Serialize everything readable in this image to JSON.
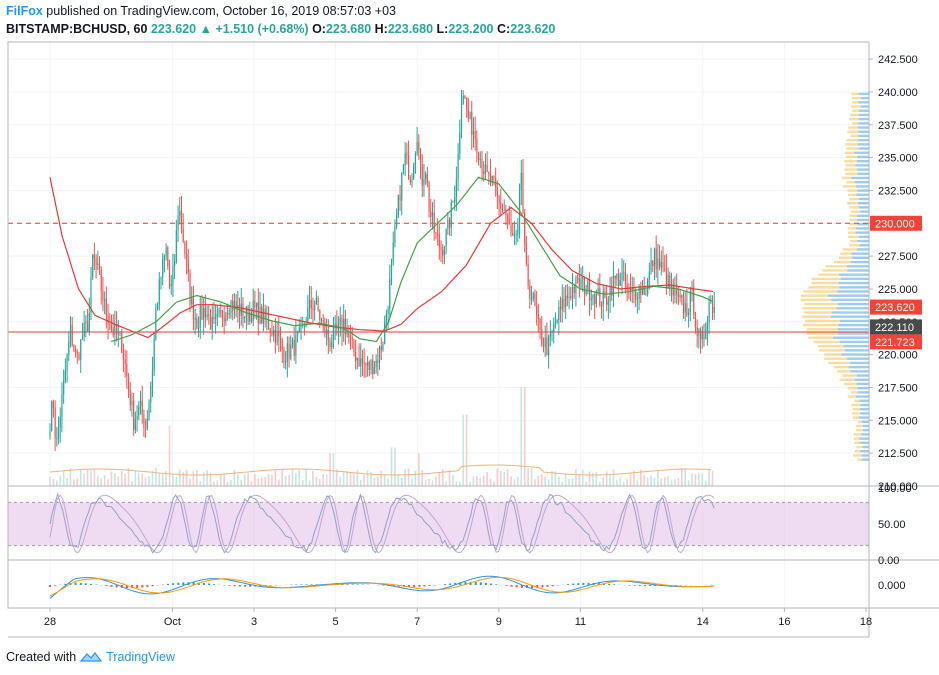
{
  "header": {
    "author": "FilFox",
    "published_text": "published on TradingView.com, October 16, 2019 08:57:03 +03",
    "symbol": "BITSTAMP:BCHUSD, 60",
    "last": "223.620",
    "change": "+1.510 (+0.68%)",
    "o_label": "O:",
    "o": "223.680",
    "h_label": "H:",
    "h": "223.680",
    "l_label": "L:",
    "l": "223.200",
    "c_label": "C:",
    "c": "223.620"
  },
  "footer": {
    "prefix": "Created with",
    "brand": "TradingView"
  },
  "colors": {
    "up": "#26a69a",
    "down": "#ef5350",
    "ma_fast": "#43a047",
    "ma_slow": "#e53935",
    "stoch_band": "#e1bee7",
    "hline": "#e53935",
    "vp_up": "#4fa3e0",
    "vp_down": "#f6c14b"
  },
  "chart_data": {
    "type": "candlestick",
    "y_ticks": [
      "242.500",
      "240.000",
      "237.500",
      "235.000",
      "232.500",
      "230.000",
      "227.500",
      "225.000",
      "222.500",
      "220.000",
      "217.500",
      "215.000",
      "212.500",
      "210.000"
    ],
    "ylim": [
      210.0,
      243.8
    ],
    "x_ticks": [
      {
        "label": "28",
        "day": 0
      },
      {
        "label": "Oct",
        "day": 3
      },
      {
        "label": "3",
        "day": 5
      },
      {
        "label": "5",
        "day": 7
      },
      {
        "label": "7",
        "day": 9
      },
      {
        "label": "9",
        "day": 11
      },
      {
        "label": "11",
        "day": 13
      },
      {
        "label": "14",
        "day": 16
      },
      {
        "label": "16",
        "day": 18
      },
      {
        "label": "18",
        "day": 20
      }
    ],
    "price_labels": [
      {
        "text": "230.000",
        "value": 230.0,
        "bg": "#f44336",
        "fg": "#ffffff"
      },
      {
        "text": "223.620",
        "value": 223.62,
        "bg": "#f44336",
        "fg": "#ffffff"
      },
      {
        "text": "222.110",
        "value": 222.11,
        "bg": "#4a4a4a",
        "fg": "#ffffff"
      },
      {
        "text": "221.723",
        "value": 221.723,
        "bg": "#f44336",
        "fg": "#ffffff"
      }
    ],
    "hlines": [
      {
        "value": 230.0,
        "style": "dashed"
      },
      {
        "value": 221.723,
        "style": "solid"
      }
    ],
    "anchors": [
      [
        0.0,
        215.0
      ],
      [
        0.08,
        216.5
      ],
      [
        0.15,
        212.8
      ],
      [
        0.25,
        215.5
      ],
      [
        0.35,
        218.0
      ],
      [
        0.5,
        221.8
      ],
      [
        0.65,
        219.5
      ],
      [
        0.8,
        221.5
      ],
      [
        0.95,
        222.5
      ],
      [
        1.05,
        227.5
      ],
      [
        1.2,
        226.0
      ],
      [
        1.35,
        223.5
      ],
      [
        1.55,
        221.8
      ],
      [
        1.75,
        221.0
      ],
      [
        1.9,
        218.0
      ],
      [
        2.05,
        215.0
      ],
      [
        2.2,
        216.0
      ],
      [
        2.35,
        214.5
      ],
      [
        2.5,
        218.5
      ],
      [
        2.6,
        223.5
      ],
      [
        2.75,
        226.5
      ],
      [
        2.85,
        228.0
      ],
      [
        2.95,
        224.5
      ],
      [
        3.05,
        227.0
      ],
      [
        3.15,
        231.5
      ],
      [
        3.3,
        228.0
      ],
      [
        3.45,
        224.0
      ],
      [
        3.6,
        222.5
      ],
      [
        3.8,
        223.5
      ],
      [
        4.0,
        222.0
      ],
      [
        4.2,
        223.0
      ],
      [
        4.4,
        224.0
      ],
      [
        4.6,
        223.5
      ],
      [
        4.8,
        223.0
      ],
      [
        5.0,
        223.5
      ],
      [
        5.3,
        222.5
      ],
      [
        5.55,
        221.5
      ],
      [
        5.75,
        220.0
      ],
      [
        5.95,
        220.5
      ],
      [
        6.15,
        221.5
      ],
      [
        6.35,
        223.5
      ],
      [
        6.5,
        224.0
      ],
      [
        6.65,
        222.5
      ],
      [
        6.85,
        221.0
      ],
      [
        7.05,
        221.8
      ],
      [
        7.2,
        222.5
      ],
      [
        7.4,
        220.5
      ],
      [
        7.6,
        219.5
      ],
      [
        7.8,
        219.0
      ],
      [
        8.0,
        219.5
      ],
      [
        8.15,
        221.0
      ],
      [
        8.3,
        224.5
      ],
      [
        8.4,
        227.5
      ],
      [
        8.5,
        230.5
      ],
      [
        8.6,
        233.0
      ],
      [
        8.7,
        235.0
      ],
      [
        8.85,
        233.5
      ],
      [
        9.0,
        237.0
      ],
      [
        9.1,
        233.0
      ],
      [
        9.2,
        234.5
      ],
      [
        9.3,
        231.0
      ],
      [
        9.45,
        229.0
      ],
      [
        9.6,
        228.0
      ],
      [
        9.75,
        229.5
      ],
      [
        9.9,
        232.0
      ],
      [
        10.0,
        235.0
      ],
      [
        10.1,
        240.5
      ],
      [
        10.25,
        238.0
      ],
      [
        10.4,
        237.0
      ],
      [
        10.55,
        235.0
      ],
      [
        10.7,
        233.5
      ],
      [
        10.85,
        233.0
      ],
      [
        11.0,
        231.5
      ],
      [
        11.15,
        231.0
      ],
      [
        11.3,
        229.0
      ],
      [
        11.45,
        228.5
      ],
      [
        11.55,
        234.0
      ],
      [
        11.65,
        226.5
      ],
      [
        11.75,
        225.0
      ],
      [
        11.85,
        224.0
      ],
      [
        12.0,
        221.5
      ],
      [
        12.2,
        220.5
      ],
      [
        12.4,
        222.5
      ],
      [
        12.6,
        224.0
      ],
      [
        12.8,
        225.0
      ],
      [
        13.0,
        225.5
      ],
      [
        13.2,
        225.0
      ],
      [
        13.4,
        224.5
      ],
      [
        13.6,
        224.0
      ],
      [
        13.8,
        225.5
      ],
      [
        14.0,
        226.0
      ],
      [
        14.2,
        224.5
      ],
      [
        14.4,
        225.0
      ],
      [
        14.6,
        225.0
      ],
      [
        14.8,
        227.5
      ],
      [
        15.0,
        226.5
      ],
      [
        15.2,
        225.0
      ],
      [
        15.4,
        224.0
      ],
      [
        15.6,
        223.5
      ],
      [
        15.75,
        224.5
      ],
      [
        15.85,
        222.0
      ],
      [
        15.95,
        220.5
      ],
      [
        16.05,
        221.8
      ],
      [
        16.15,
        224.0
      ],
      [
        16.28,
        223.62
      ]
    ],
    "ma_fast_anchors": [
      [
        1.5,
        221.0
      ],
      [
        2.0,
        221.5
      ],
      [
        2.6,
        222.5
      ],
      [
        3.1,
        224.0
      ],
      [
        3.6,
        224.5
      ],
      [
        4.2,
        224.0
      ],
      [
        4.8,
        223.2
      ],
      [
        5.4,
        222.6
      ],
      [
        6.0,
        222.2
      ],
      [
        6.6,
        222.4
      ],
      [
        7.2,
        222.0
      ],
      [
        7.6,
        221.2
      ],
      [
        8.0,
        221.0
      ],
      [
        8.3,
        222.5
      ],
      [
        8.6,
        225.5
      ],
      [
        9.0,
        228.5
      ],
      [
        9.5,
        230.0
      ],
      [
        10.0,
        231.5
      ],
      [
        10.5,
        233.5
      ],
      [
        11.0,
        233.0
      ],
      [
        11.5,
        231.0
      ],
      [
        12.0,
        228.5
      ],
      [
        12.5,
        226.0
      ],
      [
        13.0,
        225.0
      ],
      [
        13.6,
        224.6
      ],
      [
        14.2,
        224.8
      ],
      [
        14.8,
        225.2
      ],
      [
        15.4,
        225.0
      ],
      [
        16.0,
        224.4
      ],
      [
        16.28,
        224.0
      ]
    ],
    "ma_slow_anchors": [
      [
        0.0,
        233.5
      ],
      [
        0.3,
        229.0
      ],
      [
        0.7,
        225.0
      ],
      [
        1.1,
        223.0
      ],
      [
        1.6,
        222.3
      ],
      [
        2.0,
        221.8
      ],
      [
        2.4,
        221.3
      ],
      [
        2.8,
        222.2
      ],
      [
        3.2,
        223.2
      ],
      [
        3.6,
        223.8
      ],
      [
        4.0,
        223.8
      ],
      [
        4.6,
        223.6
      ],
      [
        5.2,
        223.2
      ],
      [
        5.8,
        222.8
      ],
      [
        6.4,
        222.4
      ],
      [
        7.0,
        222.1
      ],
      [
        7.6,
        221.9
      ],
      [
        8.2,
        221.8
      ],
      [
        8.6,
        222.3
      ],
      [
        9.0,
        223.5
      ],
      [
        9.6,
        224.8
      ],
      [
        10.2,
        226.8
      ],
      [
        10.8,
        230.0
      ],
      [
        11.3,
        231.2
      ],
      [
        11.8,
        230.0
      ],
      [
        12.3,
        228.0
      ],
      [
        12.8,
        226.4
      ],
      [
        13.4,
        225.4
      ],
      [
        14.0,
        225.0
      ],
      [
        14.6,
        225.2
      ],
      [
        15.2,
        225.3
      ],
      [
        15.8,
        225.0
      ],
      [
        16.28,
        224.8
      ]
    ],
    "volume_spikes": [
      [
        2.95,
        0.55
      ],
      [
        8.4,
        0.35
      ],
      [
        10.15,
        0.65
      ],
      [
        11.6,
        0.9
      ],
      [
        9.05,
        0.3
      ],
      [
        6.9,
        0.3
      ]
    ],
    "stoch": {
      "y_ticks": [
        "100.00",
        "50.00",
        "0.00"
      ],
      "band": [
        20,
        80
      ],
      "ylim": [
        0,
        100
      ]
    },
    "macd": {
      "y_ticks": [
        "0.000"
      ]
    }
  }
}
